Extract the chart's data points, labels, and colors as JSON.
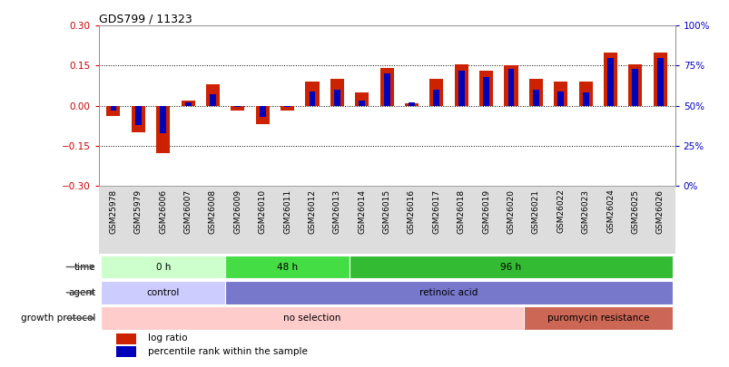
{
  "title": "GDS799 / 11323",
  "samples": [
    "GSM25978",
    "GSM25979",
    "GSM26006",
    "GSM26007",
    "GSM26008",
    "GSM26009",
    "GSM26010",
    "GSM26011",
    "GSM26012",
    "GSM26013",
    "GSM26014",
    "GSM26015",
    "GSM26016",
    "GSM26017",
    "GSM26018",
    "GSM26019",
    "GSM26020",
    "GSM26021",
    "GSM26022",
    "GSM26023",
    "GSM26024",
    "GSM26025",
    "GSM26026"
  ],
  "log_ratio": [
    -0.04,
    -0.1,
    -0.18,
    0.02,
    0.08,
    -0.02,
    -0.07,
    -0.02,
    0.09,
    0.1,
    0.05,
    0.14,
    0.01,
    0.1,
    0.155,
    0.13,
    0.15,
    0.1,
    0.09,
    0.09,
    0.2,
    0.155,
    0.2
  ],
  "percentile_rank": [
    47,
    38,
    33,
    52,
    57,
    49,
    43,
    49,
    59,
    60,
    53,
    70,
    52,
    60,
    72,
    68,
    73,
    60,
    59,
    58,
    80,
    73,
    80
  ],
  "bar_color_red": "#cc2200",
  "bar_color_blue": "#0000bb",
  "ylim_left": [
    -0.3,
    0.3
  ],
  "ylim_right": [
    0,
    100
  ],
  "yticks_left": [
    -0.3,
    -0.15,
    0.0,
    0.15,
    0.3
  ],
  "yticks_right": [
    0,
    25,
    50,
    75,
    100
  ],
  "ytick_labels_right": [
    "0%",
    "25%",
    "50%",
    "75%",
    "100%"
  ],
  "hlines": [
    0.15,
    0.0,
    -0.15
  ],
  "bg_color": "#ffffff",
  "label_color_left": "#cc0000",
  "label_color_right": "#0000cc",
  "time_groups": [
    {
      "label": "0 h",
      "start": 0,
      "end": 5,
      "color": "#ccffcc"
    },
    {
      "label": "48 h",
      "start": 5,
      "end": 10,
      "color": "#44dd44"
    },
    {
      "label": "96 h",
      "start": 10,
      "end": 23,
      "color": "#33bb33"
    }
  ],
  "agent_groups": [
    {
      "label": "control",
      "start": 0,
      "end": 5,
      "color": "#ccccff"
    },
    {
      "label": "retinoic acid",
      "start": 5,
      "end": 23,
      "color": "#7777cc"
    }
  ],
  "growth_groups": [
    {
      "label": "no selection",
      "start": 0,
      "end": 17,
      "color": "#ffcccc"
    },
    {
      "label": "puromycin resistance",
      "start": 17,
      "end": 23,
      "color": "#cc6655"
    }
  ]
}
